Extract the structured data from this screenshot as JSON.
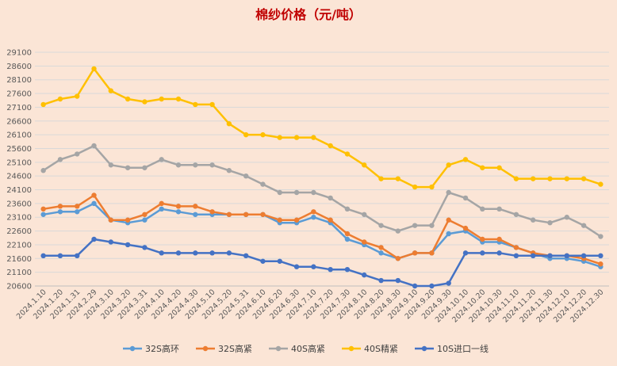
{
  "chart_data": {
    "type": "line",
    "title": "棉纱价格（元/吨）",
    "xlabel": "",
    "ylabel": "",
    "ylim": [
      20600,
      29100
    ],
    "yticks": [
      "20600",
      "21100",
      "21600",
      "22100",
      "22600",
      "23100",
      "23600",
      "24100",
      "24600",
      "25100",
      "25600",
      "26100",
      "26600",
      "27100",
      "27600",
      "28100",
      "28600",
      "29100"
    ],
    "grid": true,
    "legend_position": "bottom",
    "categories": [
      "2024.1.10",
      "2024.1.20",
      "2024.1.31",
      "2024.2.29",
      "2024.3.10",
      "2024.3.20",
      "2024.3.31",
      "2024.4.10",
      "2024.4.20",
      "2024.4.30",
      "2024.5.10",
      "2024.5.20",
      "2024.5.31",
      "2024.6.10",
      "2024.6.20",
      "2024.6.30",
      "2024.7.10",
      "2024.7.20",
      "2024.7.30",
      "2024.8.10",
      "2024.8.20",
      "2024.8.30",
      "2024.9.10",
      "2024.9.20",
      "2024.9.30",
      "2024.10.10",
      "2024.10.20",
      "2024.10.30",
      "2024.11.10",
      "2024.11.20",
      "2024.11.30",
      "2024.12.10",
      "2024.12.20",
      "2024.12.30"
    ],
    "series": [
      {
        "name": "32S高环",
        "color": "#5b9bd5",
        "values": [
          23200,
          23300,
          23300,
          23600,
          23000,
          22900,
          23000,
          23400,
          23300,
          23200,
          23200,
          23200,
          23200,
          23200,
          22900,
          22900,
          23100,
          22900,
          22300,
          22100,
          21800,
          21600,
          21800,
          21800,
          22500,
          22600,
          22200,
          22200,
          22000,
          21800,
          21600,
          21600,
          21500,
          21300
        ]
      },
      {
        "name": "32S高紧",
        "color": "#ed7d31",
        "values": [
          23400,
          23500,
          23500,
          23900,
          23000,
          23000,
          23200,
          23600,
          23500,
          23500,
          23300,
          23200,
          23200,
          23200,
          23000,
          23000,
          23300,
          23000,
          22500,
          22200,
          22000,
          21600,
          21800,
          21800,
          23000,
          22700,
          22300,
          22300,
          22000,
          21800,
          21700,
          21700,
          21600,
          21400
        ]
      },
      {
        "name": "40S高紧",
        "color": "#a5a5a5",
        "values": [
          24800,
          25200,
          25400,
          25700,
          25000,
          24900,
          24900,
          25200,
          25000,
          25000,
          25000,
          24800,
          24600,
          24300,
          24000,
          24000,
          24000,
          23800,
          23400,
          23200,
          22800,
          22600,
          22800,
          22800,
          24000,
          23800,
          23400,
          23400,
          23200,
          23000,
          22900,
          23100,
          22800,
          22400
        ]
      },
      {
        "name": "40S精紧",
        "color": "#ffc000",
        "values": [
          27200,
          27400,
          27500,
          28500,
          27700,
          27400,
          27300,
          27400,
          27400,
          27200,
          27200,
          26500,
          26100,
          26100,
          26000,
          26000,
          26000,
          25700,
          25400,
          25000,
          24500,
          24500,
          24200,
          24200,
          25000,
          25200,
          24900,
          24900,
          24500,
          24500,
          24500,
          24500,
          24500,
          24300
        ]
      },
      {
        "name": "10S进口一线",
        "color": "#4472c4",
        "values": [
          21700,
          21700,
          21700,
          22300,
          22200,
          22100,
          22000,
          21800,
          21800,
          21800,
          21800,
          21800,
          21700,
          21500,
          21500,
          21300,
          21300,
          21200,
          21200,
          21000,
          20800,
          20800,
          20600,
          20600,
          20700,
          21800,
          21800,
          21800,
          21700,
          21700,
          21700,
          21700,
          21700,
          21700
        ]
      }
    ]
  }
}
